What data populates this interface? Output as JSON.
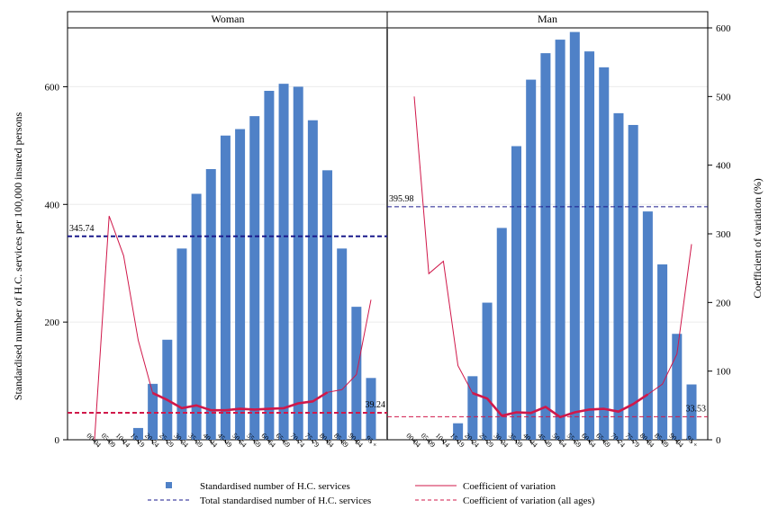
{
  "chart_data": {
    "type": "bar",
    "ylabel_left": "Standardised number of H.C. services per 100,000 insured persons",
    "ylabel_right": "Coefficient of variation (%)",
    "ylim_left": [
      0,
      700
    ],
    "ylim_right": [
      0,
      600
    ],
    "yticks_left": [
      "0",
      "200",
      "400",
      "600"
    ],
    "yticks_right": [
      "0",
      "100",
      "200",
      "300",
      "400",
      "500",
      "600"
    ],
    "categories": [
      "00-04",
      "05-09",
      "10-14",
      "15-19",
      "20-24",
      "25-29",
      "30-34",
      "35-39",
      "40-44",
      "45-49",
      "50-54",
      "55-59",
      "60-64",
      "65-69",
      "70-74",
      "75-79",
      "80-84",
      "85-89",
      "90-94",
      "95 +"
    ],
    "panels": [
      {
        "name": "Woman",
        "services": [
          0,
          0,
          0,
          20,
          95,
          170,
          325,
          418,
          460,
          517,
          528,
          550,
          593,
          605,
          600,
          543,
          458,
          325,
          226,
          105
        ],
        "cv": [
          0,
          326,
          268,
          145,
          68,
          58,
          46,
          50,
          43,
          43,
          45,
          44,
          45,
          46,
          53,
          56,
          69,
          73,
          95,
          204
        ],
        "total": 345.74,
        "total_label": "345.74",
        "cv_all": 39.24,
        "cv_all_label": "39.24"
      },
      {
        "name": "Man",
        "services": [
          0,
          0,
          0,
          28,
          108,
          233,
          360,
          499,
          612,
          657,
          680,
          693,
          660,
          633,
          555,
          535,
          388,
          298,
          180,
          94
        ],
        "cv": [
          500,
          242,
          260,
          108,
          68,
          60,
          35,
          40,
          39,
          48,
          33,
          40,
          44,
          45,
          41,
          52,
          66,
          81,
          125,
          285
        ],
        "total": 395.98,
        "total_label": "395.98",
        "cv_all": 33.53,
        "cv_all_label": "33.53"
      }
    ],
    "legend": {
      "services": "Standardised number of H.C. services",
      "cv": "Coefficient of variation",
      "total": "Total standardised number of H.C. services",
      "cv_all": "Coefficient of variation (all ages)"
    },
    "colors": {
      "bar": "#4f81c7",
      "cv": "#d0184a",
      "total": "#1a1a8c",
      "cv_all": "#d0184a"
    }
  }
}
